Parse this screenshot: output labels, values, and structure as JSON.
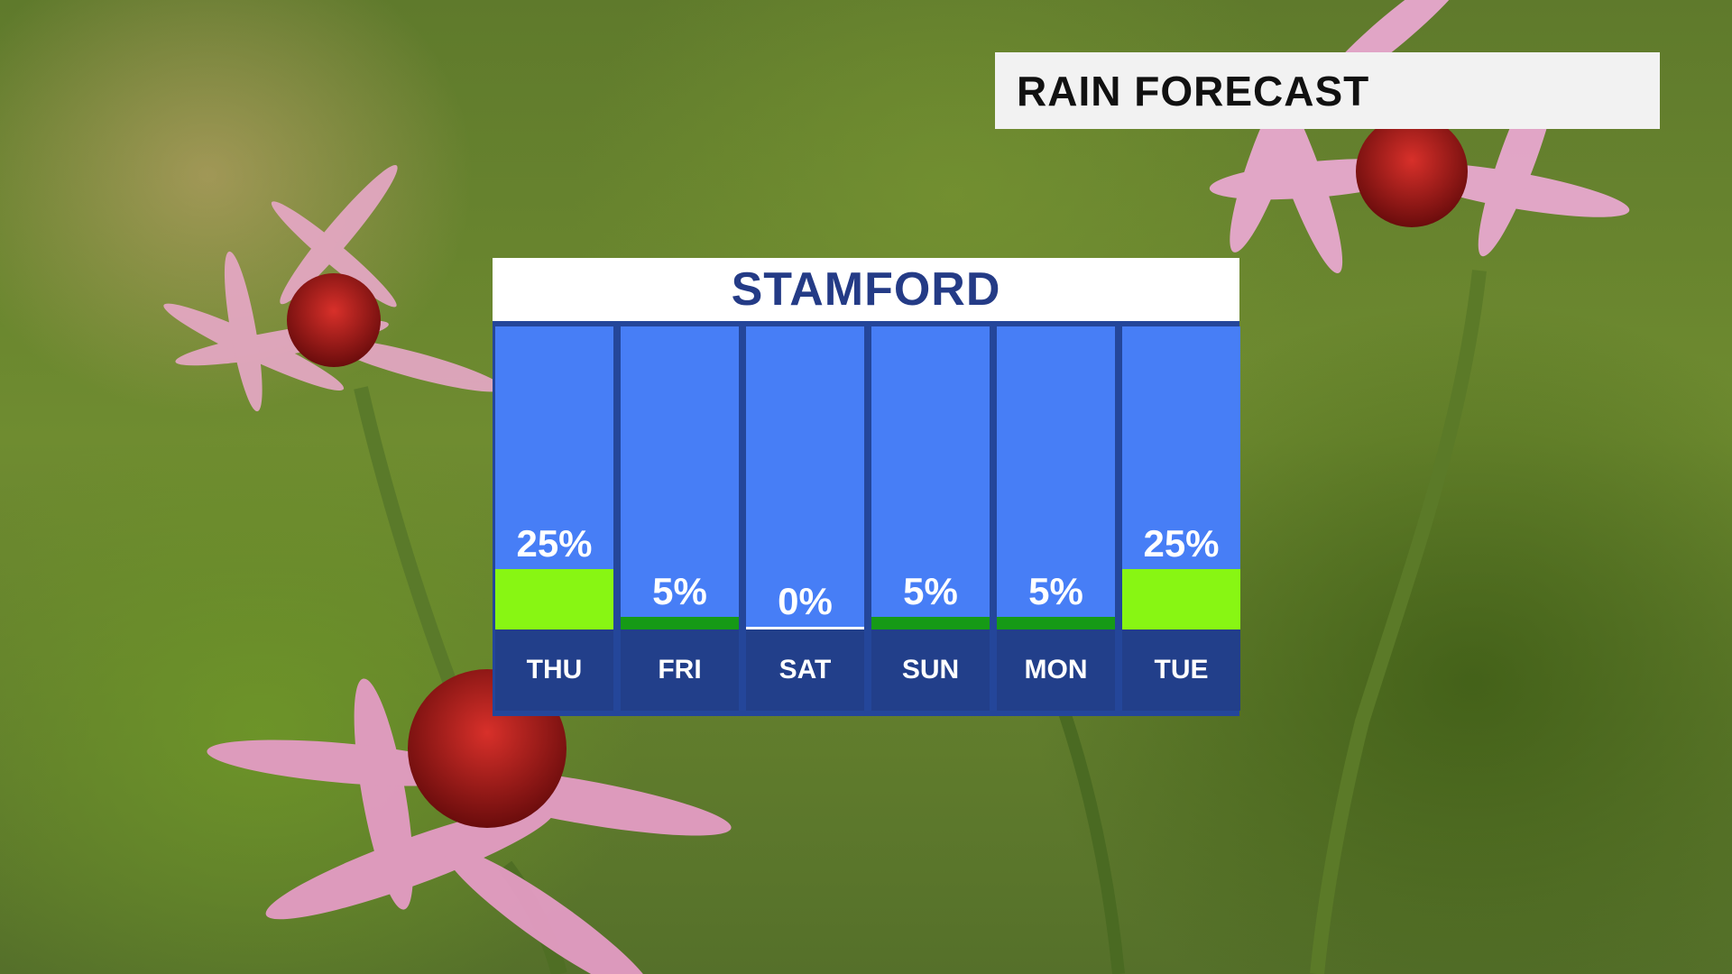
{
  "header": {
    "title": "RAIN FORECAST"
  },
  "panel": {
    "location": "STAMFORD"
  },
  "colors": {
    "column_bg": "#477ef6",
    "day_bg": "#223f8a",
    "high_bar": "#88f613",
    "low_bar": "#169a16",
    "zero_line": "#ffffff",
    "title_text": "#243b86"
  },
  "chart_data": {
    "type": "bar",
    "title": "",
    "categories": [
      "THU",
      "FRI",
      "SAT",
      "SUN",
      "MON",
      "TUE"
    ],
    "values": [
      25,
      5,
      0,
      5,
      5,
      25
    ],
    "labels": [
      "25%",
      "5%",
      "0%",
      "5%",
      "5%",
      "25%"
    ],
    "unit": "%",
    "ylim": [
      0,
      100
    ],
    "grid": false
  }
}
